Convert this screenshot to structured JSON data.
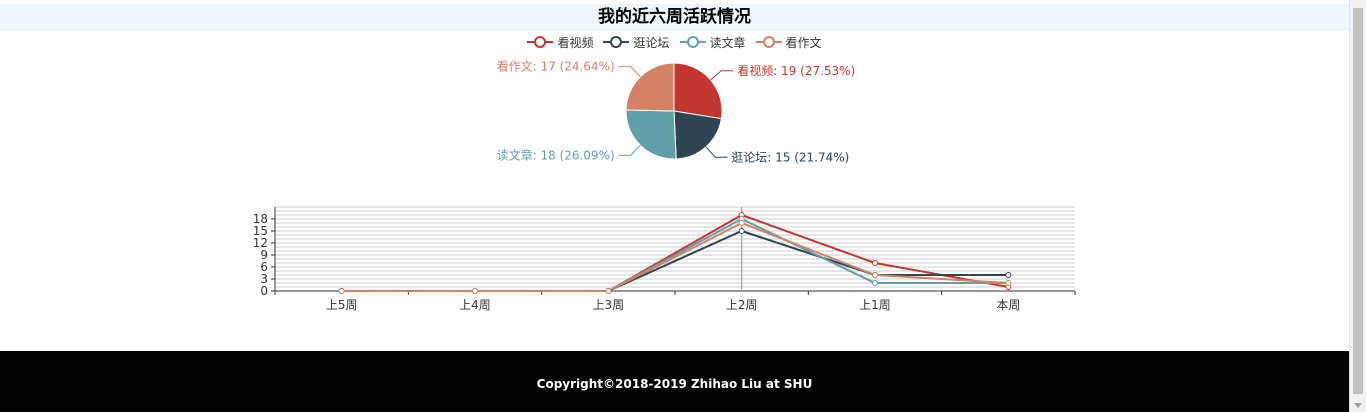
{
  "page": {
    "title": "我的近六周活跃情况",
    "footer": "Copyright©2018-2019 Zhihao Liu at SHU"
  },
  "legend": [
    {
      "label": "看视频",
      "color": "#c23531"
    },
    {
      "label": "逛论坛",
      "color": "#2f4554"
    },
    {
      "label": "读文章",
      "color": "#61a0a8"
    },
    {
      "label": "看作文",
      "color": "#d48265"
    }
  ],
  "chart_data": [
    {
      "type": "pie",
      "slices": [
        {
          "name": "看视频",
          "value": 19,
          "percent": "27.53%",
          "label": "看视频: 19 (27.53%)",
          "color": "#c23531"
        },
        {
          "name": "逛论坛",
          "value": 15,
          "percent": "21.74%",
          "label": "逛论坛: 15 (21.74%)",
          "color": "#2f4554"
        },
        {
          "name": "读文章",
          "value": 18,
          "percent": "26.09%",
          "label": "读文章: 18 (26.09%)",
          "color": "#61a0a8"
        },
        {
          "name": "看作文",
          "value": 17,
          "percent": "24.64%",
          "label": "看作文: 17 (24.64%)",
          "color": "#d48265"
        }
      ]
    },
    {
      "type": "line",
      "categories": [
        "上5周",
        "上4周",
        "上3周",
        "上2周",
        "上1周",
        "本周"
      ],
      "yticks": [
        0,
        3,
        6,
        9,
        12,
        15,
        18
      ],
      "ylim": [
        0,
        21
      ],
      "grid": true,
      "series": [
        {
          "name": "看视频",
          "color": "#c23531",
          "values": [
            0,
            0,
            0,
            19,
            7,
            1
          ]
        },
        {
          "name": "逛论坛",
          "color": "#2f4554",
          "values": [
            0,
            0,
            0,
            15,
            4,
            4
          ]
        },
        {
          "name": "读文章",
          "color": "#61a0a8",
          "values": [
            0,
            0,
            0,
            18,
            2,
            2
          ]
        },
        {
          "name": "看作文",
          "color": "#d48265",
          "values": [
            0,
            0,
            0,
            17,
            4,
            2
          ]
        }
      ]
    }
  ]
}
